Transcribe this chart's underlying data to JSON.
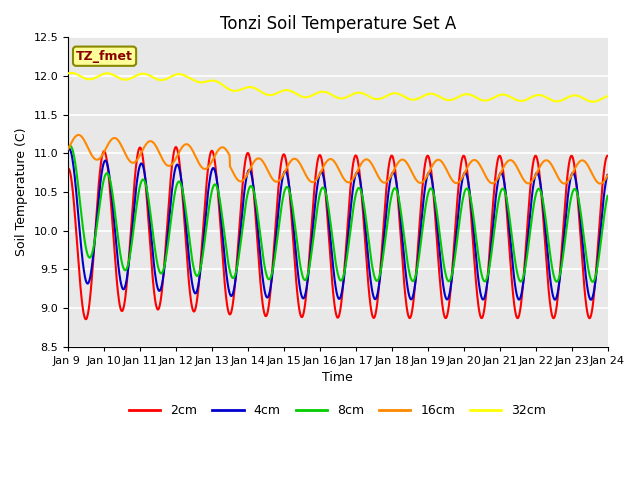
{
  "title": "Tonzi Soil Temperature Set A",
  "xlabel": "Time",
  "ylabel": "Soil Temperature (C)",
  "ylim": [
    8.5,
    12.5
  ],
  "x_tick_labels": [
    "Jan 9 ",
    "Jan 10",
    "Jan 11",
    "Jan 12",
    "Jan 13",
    "Jan 14",
    "Jan 15",
    "Jan 16",
    "Jan 17",
    "Jan 18",
    "Jan 19",
    "Jan 20",
    "Jan 21",
    "Jan 22",
    "Jan 23",
    "Jan 24"
  ],
  "annotation_text": "TZ_fmet",
  "annotation_color": "#8B0000",
  "annotation_bg": "#FFFF99",
  "annotation_edge": "#888800",
  "colors": {
    "2cm": "#FF0000",
    "4cm": "#0000CC",
    "8cm": "#00CC00",
    "16cm": "#FF8800",
    "32cm": "#FFFF00"
  },
  "background_color": "#E8E8E8",
  "fig_background": "#FFFFFF",
  "grid_color": "#FFFFFF",
  "title_fontsize": 12,
  "axis_label_fontsize": 9,
  "tick_fontsize": 8
}
